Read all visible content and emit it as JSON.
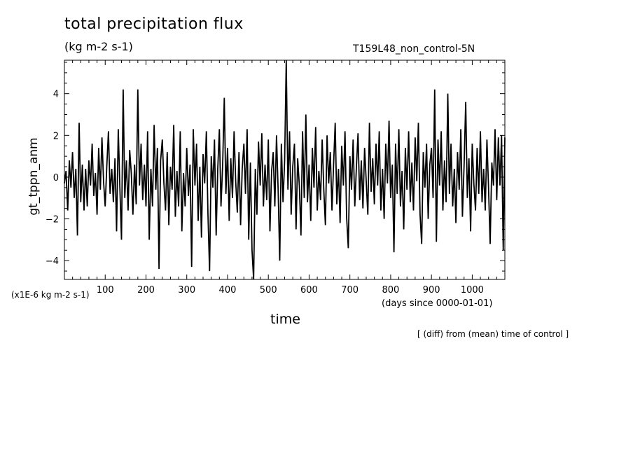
{
  "header": {
    "title": "total precipitation flux",
    "units": "(kg m-2 s-1)",
    "run_name": "T159L48_non_control-5N"
  },
  "axes": {
    "ylabel": "gt_tppn_anm",
    "xlabel": "time",
    "xunits": "(days since 0000-01-01)",
    "scale_note": "(x1E-6 kg m-2 s-1)"
  },
  "footer": {
    "note": "[ (diff) from (mean) time of control ]"
  },
  "chart_data": {
    "type": "line",
    "title": "total precipitation flux",
    "xlabel": "time",
    "ylabel": "gt_tppn_anm",
    "xlim": [
      0,
      1080
    ],
    "ylim": [
      -4.9,
      5.6
    ],
    "xticks": [
      100,
      200,
      300,
      400,
      500,
      600,
      700,
      800,
      900,
      1000
    ],
    "yticks": [
      -4,
      -2,
      0,
      2,
      4
    ],
    "grid": false,
    "series": [
      {
        "values": [
          [
            0,
            -0.3
          ],
          [
            4,
            0.3
          ],
          [
            8,
            -1.6
          ],
          [
            12,
            0.8
          ],
          [
            16,
            -0.5
          ],
          [
            20,
            1.2
          ],
          [
            24,
            -1.0
          ],
          [
            28,
            0.4
          ],
          [
            32,
            -2.8
          ],
          [
            36,
            2.6
          ],
          [
            40,
            -1.2
          ],
          [
            44,
            0.6
          ],
          [
            48,
            -1.6
          ],
          [
            52,
            0.4
          ],
          [
            56,
            -1.4
          ],
          [
            60,
            0.8
          ],
          [
            64,
            -0.4
          ],
          [
            68,
            1.6
          ],
          [
            72,
            -0.9
          ],
          [
            76,
            0.2
          ],
          [
            80,
            -1.8
          ],
          [
            84,
            1.4
          ],
          [
            88,
            -0.6
          ],
          [
            92,
            1.9
          ],
          [
            96,
            -0.2
          ],
          [
            100,
            -1.4
          ],
          [
            104,
            0.6
          ],
          [
            108,
            2.2
          ],
          [
            112,
            -0.8
          ],
          [
            116,
            0.4
          ],
          [
            120,
            -1.2
          ],
          [
            124,
            0.9
          ],
          [
            128,
            -2.6
          ],
          [
            132,
            2.3
          ],
          [
            136,
            -0.5
          ],
          [
            140,
            -3.0
          ],
          [
            144,
            4.2
          ],
          [
            148,
            -1.0
          ],
          [
            152,
            0.8
          ],
          [
            156,
            -1.6
          ],
          [
            160,
            1.3
          ],
          [
            164,
            0.2
          ],
          [
            168,
            -1.8
          ],
          [
            172,
            0.6
          ],
          [
            176,
            -1.3
          ],
          [
            180,
            4.2
          ],
          [
            184,
            -0.4
          ],
          [
            188,
            1.6
          ],
          [
            192,
            -1.1
          ],
          [
            196,
            0.6
          ],
          [
            200,
            -1.4
          ],
          [
            204,
            2.2
          ],
          [
            208,
            -3.0
          ],
          [
            212,
            0.4
          ],
          [
            216,
            -1.4
          ],
          [
            220,
            2.5
          ],
          [
            224,
            -0.6
          ],
          [
            228,
            1.4
          ],
          [
            232,
            -4.4
          ],
          [
            236,
            0.8
          ],
          [
            240,
            1.8
          ],
          [
            244,
            -0.3
          ],
          [
            248,
            -1.6
          ],
          [
            252,
            1.2
          ],
          [
            256,
            -2.3
          ],
          [
            260,
            0.5
          ],
          [
            264,
            -0.6
          ],
          [
            268,
            2.5
          ],
          [
            272,
            -1.9
          ],
          [
            276,
            0.3
          ],
          [
            280,
            -1.4
          ],
          [
            284,
            2.2
          ],
          [
            288,
            -2.6
          ],
          [
            292,
            0.2
          ],
          [
            296,
            -1.4
          ],
          [
            300,
            1.4
          ],
          [
            304,
            -0.9
          ],
          [
            308,
            0.6
          ],
          [
            312,
            -4.3
          ],
          [
            316,
            2.3
          ],
          [
            320,
            -0.4
          ],
          [
            324,
            1.6
          ],
          [
            328,
            -2.1
          ],
          [
            332,
            0.5
          ],
          [
            336,
            -2.9
          ],
          [
            340,
            1.1
          ],
          [
            344,
            -0.3
          ],
          [
            348,
            2.2
          ],
          [
            352,
            -1.8
          ],
          [
            356,
            -4.5
          ],
          [
            360,
            1.0
          ],
          [
            364,
            -0.5
          ],
          [
            368,
            1.8
          ],
          [
            372,
            -2.8
          ],
          [
            376,
            0.4
          ],
          [
            380,
            2.3
          ],
          [
            384,
            -1.4
          ],
          [
            388,
            0.6
          ],
          [
            392,
            3.8
          ],
          [
            396,
            -0.8
          ],
          [
            400,
            1.4
          ],
          [
            404,
            -2.1
          ],
          [
            408,
            0.9
          ],
          [
            412,
            -1.0
          ],
          [
            416,
            2.2
          ],
          [
            420,
            -0.2
          ],
          [
            424,
            -1.7
          ],
          [
            428,
            1.2
          ],
          [
            432,
            -2.3
          ],
          [
            436,
            0.4
          ],
          [
            440,
            1.6
          ],
          [
            444,
            -0.8
          ],
          [
            448,
            2.3
          ],
          [
            452,
            -3.0
          ],
          [
            456,
            0.7
          ],
          [
            460,
            -3.5
          ],
          [
            464,
            -4.9
          ],
          [
            468,
            0.4
          ],
          [
            472,
            -1.8
          ],
          [
            476,
            1.7
          ],
          [
            480,
            -0.4
          ],
          [
            484,
            2.1
          ],
          [
            488,
            -1.4
          ],
          [
            492,
            0.6
          ],
          [
            496,
            -1.1
          ],
          [
            500,
            1.8
          ],
          [
            504,
            -2.6
          ],
          [
            508,
            0.3
          ],
          [
            512,
            1.2
          ],
          [
            516,
            -1.4
          ],
          [
            520,
            2.0
          ],
          [
            524,
            -0.6
          ],
          [
            528,
            -4.0
          ],
          [
            532,
            1.6
          ],
          [
            536,
            -1.2
          ],
          [
            540,
            0.8
          ],
          [
            544,
            5.6
          ],
          [
            548,
            -0.6
          ],
          [
            552,
            2.2
          ],
          [
            556,
            -1.8
          ],
          [
            560,
            0.5
          ],
          [
            564,
            1.6
          ],
          [
            568,
            -2.5
          ],
          [
            572,
            0.9
          ],
          [
            576,
            -0.4
          ],
          [
            580,
            -2.8
          ],
          [
            584,
            2.2
          ],
          [
            588,
            -1.0
          ],
          [
            592,
            3.0
          ],
          [
            596,
            -1.2
          ],
          [
            600,
            0.6
          ],
          [
            604,
            -2.1
          ],
          [
            608,
            1.4
          ],
          [
            612,
            -0.5
          ],
          [
            616,
            2.4
          ],
          [
            620,
            -1.6
          ],
          [
            624,
            0.3
          ],
          [
            628,
            -1.1
          ],
          [
            632,
            1.8
          ],
          [
            636,
            -0.6
          ],
          [
            640,
            -2.3
          ],
          [
            644,
            2.0
          ],
          [
            648,
            -0.3
          ],
          [
            652,
            1.2
          ],
          [
            656,
            -1.6
          ],
          [
            660,
            0.6
          ],
          [
            664,
            2.6
          ],
          [
            668,
            -1.3
          ],
          [
            672,
            0.4
          ],
          [
            676,
            -2.2
          ],
          [
            680,
            1.5
          ],
          [
            684,
            -0.4
          ],
          [
            688,
            2.2
          ],
          [
            692,
            -1.9
          ],
          [
            696,
            -3.4
          ],
          [
            700,
            1.0
          ],
          [
            704,
            -0.6
          ],
          [
            708,
            1.8
          ],
          [
            712,
            -1.4
          ],
          [
            716,
            0.5
          ],
          [
            720,
            2.1
          ],
          [
            724,
            -1.1
          ],
          [
            728,
            0.8
          ],
          [
            732,
            -1.5
          ],
          [
            736,
            1.4
          ],
          [
            740,
            -0.2
          ],
          [
            744,
            -1.8
          ],
          [
            748,
            2.6
          ],
          [
            752,
            -0.7
          ],
          [
            756,
            0.9
          ],
          [
            760,
            -1.3
          ],
          [
            764,
            1.6
          ],
          [
            768,
            -0.4
          ],
          [
            772,
            2.2
          ],
          [
            776,
            -1.6
          ],
          [
            780,
            0.4
          ],
          [
            784,
            -2.0
          ],
          [
            788,
            1.6
          ],
          [
            792,
            -0.3
          ],
          [
            796,
            2.7
          ],
          [
            800,
            -1.0
          ],
          [
            804,
            0.6
          ],
          [
            808,
            -3.6
          ],
          [
            812,
            1.6
          ],
          [
            816,
            -0.8
          ],
          [
            820,
            2.3
          ],
          [
            824,
            -1.4
          ],
          [
            828,
            0.3
          ],
          [
            832,
            -2.5
          ],
          [
            836,
            1.4
          ],
          [
            840,
            -0.6
          ],
          [
            844,
            2.2
          ],
          [
            848,
            -1.2
          ],
          [
            852,
            0.7
          ],
          [
            856,
            -1.6
          ],
          [
            860,
            1.9
          ],
          [
            864,
            -0.2
          ],
          [
            868,
            2.6
          ],
          [
            872,
            -1.8
          ],
          [
            876,
            -3.2
          ],
          [
            880,
            1.2
          ],
          [
            884,
            -0.5
          ],
          [
            888,
            1.6
          ],
          [
            892,
            -2.0
          ],
          [
            896,
            0.6
          ],
          [
            900,
            1.4
          ],
          [
            904,
            -1.0
          ],
          [
            908,
            4.2
          ],
          [
            912,
            -3.1
          ],
          [
            916,
            1.8
          ],
          [
            920,
            -0.4
          ],
          [
            924,
            2.2
          ],
          [
            928,
            -1.6
          ],
          [
            932,
            0.8
          ],
          [
            936,
            -1.2
          ],
          [
            940,
            4.0
          ],
          [
            944,
            -0.8
          ],
          [
            948,
            1.6
          ],
          [
            952,
            -1.4
          ],
          [
            956,
            0.4
          ],
          [
            960,
            -2.2
          ],
          [
            964,
            1.2
          ],
          [
            968,
            -0.6
          ],
          [
            972,
            2.3
          ],
          [
            976,
            -1.9
          ],
          [
            980,
            0.6
          ],
          [
            984,
            3.6
          ],
          [
            988,
            -1.0
          ],
          [
            992,
            0.9
          ],
          [
            996,
            -2.6
          ],
          [
            1000,
            1.6
          ],
          [
            1004,
            -0.3
          ],
          [
            1008,
            -1.6
          ],
          [
            1012,
            1.4
          ],
          [
            1016,
            -0.8
          ],
          [
            1020,
            2.2
          ],
          [
            1024,
            -1.2
          ],
          [
            1028,
            0.4
          ],
          [
            1032,
            -1.6
          ],
          [
            1036,
            1.8
          ],
          [
            1040,
            -0.5
          ],
          [
            1044,
            -3.2
          ],
          [
            1048,
            0.7
          ],
          [
            1052,
            -0.4
          ],
          [
            1056,
            2.3
          ],
          [
            1060,
            -1.1
          ],
          [
            1064,
            1.9
          ],
          [
            1068,
            -0.4
          ],
          [
            1072,
            2.0
          ],
          [
            1076,
            -3.5
          ],
          [
            1080,
            1.9
          ]
        ]
      }
    ]
  }
}
